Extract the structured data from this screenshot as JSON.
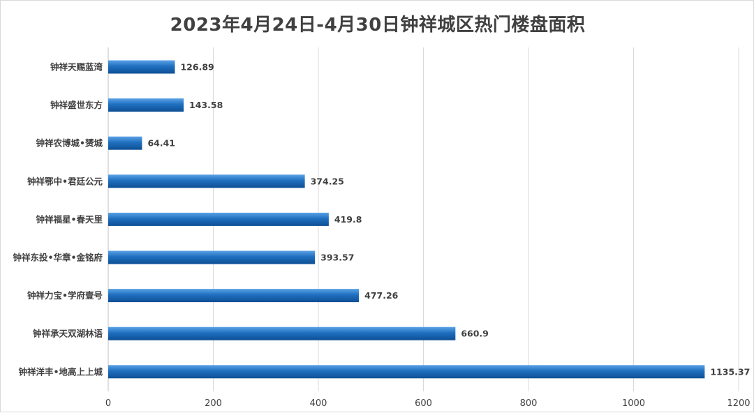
{
  "chart_data": {
    "type": "bar",
    "orientation": "horizontal",
    "title": "2023年4月24日-4月30日钟祥城区热门楼盘面积",
    "categories": [
      "钟祥天赐蓝湾",
      "钟祥盛世东方",
      "钟祥农博城•赟城",
      "钟祥鄂中•君廷公元",
      "钟祥福星•春天里",
      "钟祥东投•华章•金铭府",
      "钟祥力宝•学府壹号",
      "钟祥承天双湖林语",
      "钟祥洋丰•地高上上城"
    ],
    "values": [
      126.89,
      143.58,
      64.41,
      374.25,
      419.8,
      393.57,
      477.26,
      660.9,
      1135.37
    ],
    "value_labels": [
      "126.89",
      "143.58",
      "64.41",
      "374.25",
      "419.8",
      "393.57",
      "477.26",
      "660.9",
      "1135.37"
    ],
    "xlim": [
      0,
      1200
    ],
    "x_ticks": [
      "0",
      "200",
      "400",
      "600",
      "800",
      "1000",
      "1200"
    ],
    "xlabel": "",
    "ylabel": "",
    "grid": "vertical",
    "legend": "none",
    "bar_color": "#1f6fbf",
    "bar_color_light": "#5aa2e6",
    "bar_color_dark": "#0e4f94"
  }
}
